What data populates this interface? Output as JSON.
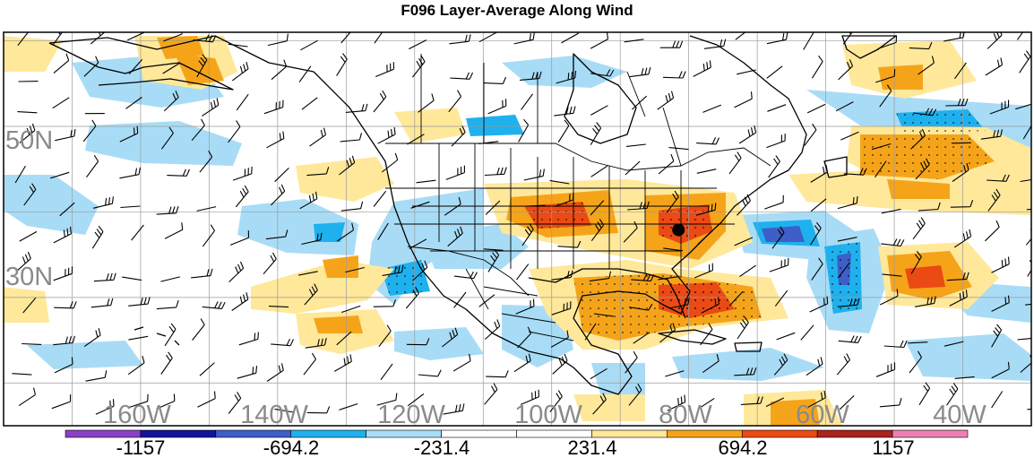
{
  "title": "F096 Layer-Average Along Wind",
  "map": {
    "projection": "cylindrical-equidistant",
    "lon_range": [
      -180,
      -30
    ],
    "lat_range": [
      15,
      61
    ],
    "lon_labels": [
      "160W",
      "140W",
      "120W",
      "100W",
      "80W",
      "60W",
      "40W"
    ],
    "lat_labels": [
      "50N",
      "30N"
    ],
    "marker": {
      "name": "station-marker",
      "lon": -81.5,
      "lat": 37.9
    }
  },
  "colorbar": {
    "colors": [
      "#8c3fc6",
      "#13139b",
      "#3e5ec8",
      "#1eb1ee",
      "#a8dcf6",
      "#ffffff",
      "#ffffff",
      "#ffe89a",
      "#f5a41a",
      "#eb4a14",
      "#a8241c",
      "#ef7fb2"
    ],
    "labels": [
      "-1157",
      "-694.2",
      "-231.4",
      "231.4",
      "694.2",
      "1157"
    ]
  }
}
